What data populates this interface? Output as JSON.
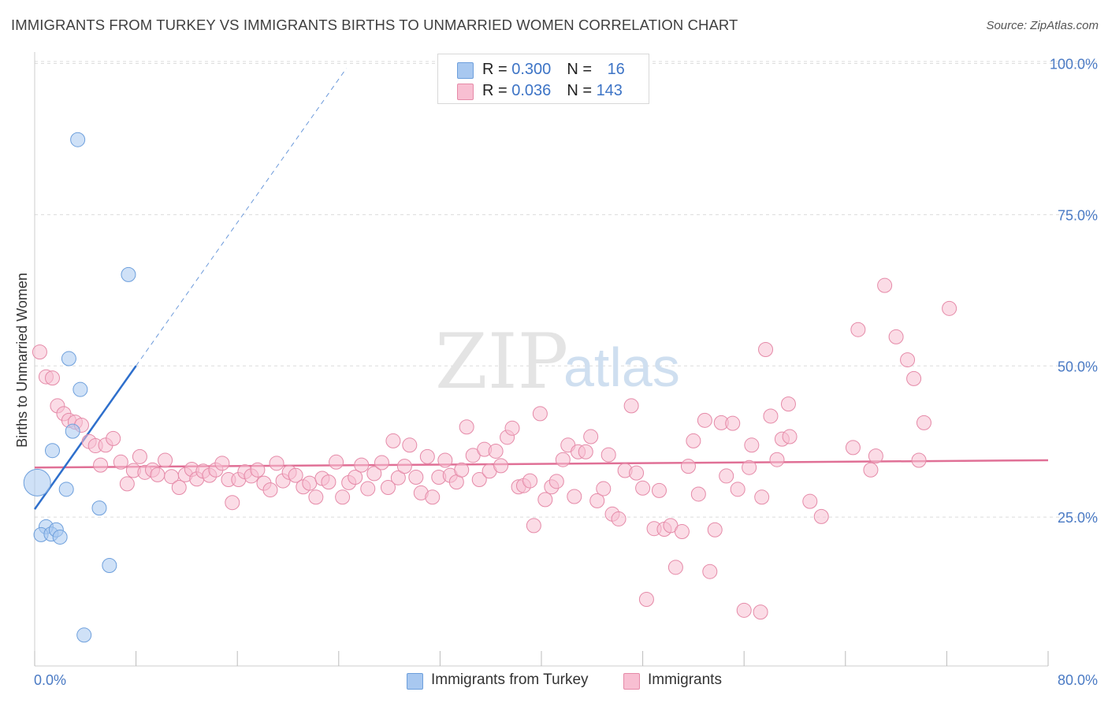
{
  "title": "IMMIGRANTS FROM TURKEY VS IMMIGRANTS BIRTHS TO UNMARRIED WOMEN CORRELATION CHART",
  "source": "Source: ZipAtlas.com",
  "watermark": {
    "part1": "ZIP",
    "part2": "atlas"
  },
  "legend": {
    "rows": [
      {
        "r_label": "R = ",
        "r_value": "0.300",
        "n_label": "N = ",
        "n_value": "16",
        "color": "#a8c8f0",
        "border": "#6d9fdc"
      },
      {
        "r_label": "R = ",
        "r_value": "0.036",
        "n_label": "N = ",
        "n_value": "143",
        "color": "#f8bfd2",
        "border": "#e58aa8"
      }
    ]
  },
  "bottom_legend": {
    "series1": "Immigrants from Turkey",
    "series2": "Immigrants"
  },
  "chart_data": {
    "type": "scatter",
    "title": "IMMIGRANTS FROM TURKEY VS IMMIGRANTS BIRTHS TO UNMARRIED WOMEN CORRELATION CHART",
    "xlabel": "",
    "ylabel": "Births to Unmarried Women",
    "xlim": [
      0,
      80
    ],
    "ylim": [
      0,
      100
    ],
    "x_tick_labels": [
      "0.0%",
      "80.0%"
    ],
    "y_tick_labels": [
      "25.0%",
      "50.0%",
      "75.0%",
      "100.0%"
    ],
    "y_ticks": [
      25,
      50,
      75,
      100
    ],
    "grid": true,
    "legend_position": "top-center",
    "series": [
      {
        "name": "Immigrants from Turkey",
        "color": "#a8c8f0",
        "stroke": "#6d9fdc",
        "line_color": "#2e6fcc",
        "trend": {
          "x0": 0,
          "y0": 26.3,
          "x1": 8,
          "y1": 50,
          "x_dash_end": 24.6
        },
        "points": [
          {
            "x": 3.4,
            "y": 87.4
          },
          {
            "x": 7.4,
            "y": 65.1
          },
          {
            "x": 2.7,
            "y": 51.2
          },
          {
            "x": 3.6,
            "y": 46.1
          },
          {
            "x": 3.0,
            "y": 39.2
          },
          {
            "x": 1.4,
            "y": 36.0
          },
          {
            "x": 0.2,
            "y": 30.7,
            "big": true
          },
          {
            "x": 2.5,
            "y": 29.6
          },
          {
            "x": 5.1,
            "y": 26.5
          },
          {
            "x": 0.9,
            "y": 23.4
          },
          {
            "x": 0.5,
            "y": 22.1
          },
          {
            "x": 1.3,
            "y": 22.2
          },
          {
            "x": 1.7,
            "y": 22.9
          },
          {
            "x": 2.0,
            "y": 21.7
          },
          {
            "x": 5.9,
            "y": 17.0
          },
          {
            "x": 3.9,
            "y": 5.5
          }
        ]
      },
      {
        "name": "Immigrants",
        "color": "#f8bfd2",
        "stroke": "#e58aa8",
        "line_color": "#e07096",
        "trend": {
          "x0": 0,
          "y0": 33.2,
          "x1": 80,
          "y1": 34.4
        },
        "points": [
          {
            "x": 0.4,
            "y": 52.3
          },
          {
            "x": 0.9,
            "y": 48.2
          },
          {
            "x": 1.4,
            "y": 48.0
          },
          {
            "x": 1.8,
            "y": 43.4
          },
          {
            "x": 2.3,
            "y": 42.1
          },
          {
            "x": 2.7,
            "y": 41.0
          },
          {
            "x": 3.2,
            "y": 40.7
          },
          {
            "x": 3.7,
            "y": 40.2
          },
          {
            "x": 4.3,
            "y": 37.5
          },
          {
            "x": 4.8,
            "y": 36.8
          },
          {
            "x": 5.2,
            "y": 33.6
          },
          {
            "x": 5.6,
            "y": 36.9
          },
          {
            "x": 6.2,
            "y": 38.0
          },
          {
            "x": 6.8,
            "y": 34.1
          },
          {
            "x": 7.3,
            "y": 30.5
          },
          {
            "x": 7.8,
            "y": 32.7
          },
          {
            "x": 8.3,
            "y": 35.0
          },
          {
            "x": 8.7,
            "y": 32.4
          },
          {
            "x": 9.3,
            "y": 32.8
          },
          {
            "x": 9.7,
            "y": 32.0
          },
          {
            "x": 10.3,
            "y": 34.4
          },
          {
            "x": 10.8,
            "y": 31.7
          },
          {
            "x": 11.4,
            "y": 29.9
          },
          {
            "x": 11.9,
            "y": 32.0
          },
          {
            "x": 12.4,
            "y": 32.9
          },
          {
            "x": 12.8,
            "y": 31.3
          },
          {
            "x": 13.3,
            "y": 32.6
          },
          {
            "x": 13.8,
            "y": 31.9
          },
          {
            "x": 14.3,
            "y": 32.8
          },
          {
            "x": 14.8,
            "y": 33.9
          },
          {
            "x": 15.3,
            "y": 31.2
          },
          {
            "x": 15.6,
            "y": 27.4
          },
          {
            "x": 16.1,
            "y": 31.2
          },
          {
            "x": 16.6,
            "y": 32.5
          },
          {
            "x": 17.1,
            "y": 31.8
          },
          {
            "x": 17.6,
            "y": 32.8
          },
          {
            "x": 18.1,
            "y": 30.6
          },
          {
            "x": 18.6,
            "y": 29.5
          },
          {
            "x": 19.1,
            "y": 33.9
          },
          {
            "x": 19.6,
            "y": 31.0
          },
          {
            "x": 20.1,
            "y": 32.4
          },
          {
            "x": 20.6,
            "y": 31.9
          },
          {
            "x": 21.2,
            "y": 30.0
          },
          {
            "x": 21.7,
            "y": 30.6
          },
          {
            "x": 22.2,
            "y": 28.3
          },
          {
            "x": 22.7,
            "y": 31.4
          },
          {
            "x": 23.2,
            "y": 30.8
          },
          {
            "x": 23.8,
            "y": 34.1
          },
          {
            "x": 24.3,
            "y": 28.3
          },
          {
            "x": 24.8,
            "y": 30.7
          },
          {
            "x": 25.3,
            "y": 31.6
          },
          {
            "x": 25.8,
            "y": 33.6
          },
          {
            "x": 26.3,
            "y": 29.7
          },
          {
            "x": 26.8,
            "y": 32.2
          },
          {
            "x": 27.4,
            "y": 34.0
          },
          {
            "x": 27.9,
            "y": 29.9
          },
          {
            "x": 28.3,
            "y": 37.6
          },
          {
            "x": 28.7,
            "y": 31.5
          },
          {
            "x": 29.2,
            "y": 33.4
          },
          {
            "x": 29.6,
            "y": 36.9
          },
          {
            "x": 30.1,
            "y": 31.6
          },
          {
            "x": 30.5,
            "y": 29.0
          },
          {
            "x": 31.0,
            "y": 35.0
          },
          {
            "x": 31.4,
            "y": 28.3
          },
          {
            "x": 31.9,
            "y": 31.6
          },
          {
            "x": 32.4,
            "y": 34.4
          },
          {
            "x": 32.8,
            "y": 31.9
          },
          {
            "x": 33.3,
            "y": 30.8
          },
          {
            "x": 33.7,
            "y": 32.8
          },
          {
            "x": 34.1,
            "y": 39.9
          },
          {
            "x": 34.6,
            "y": 35.2
          },
          {
            "x": 35.1,
            "y": 31.2
          },
          {
            "x": 35.5,
            "y": 36.2
          },
          {
            "x": 35.9,
            "y": 32.6
          },
          {
            "x": 36.4,
            "y": 35.9
          },
          {
            "x": 36.8,
            "y": 33.5
          },
          {
            "x": 37.3,
            "y": 38.2
          },
          {
            "x": 37.7,
            "y": 39.7
          },
          {
            "x": 38.2,
            "y": 30.0
          },
          {
            "x": 38.6,
            "y": 30.2
          },
          {
            "x": 39.1,
            "y": 31.0
          },
          {
            "x": 39.4,
            "y": 23.6
          },
          {
            "x": 39.9,
            "y": 42.1
          },
          {
            "x": 40.3,
            "y": 27.9
          },
          {
            "x": 40.8,
            "y": 30.0
          },
          {
            "x": 41.2,
            "y": 30.9
          },
          {
            "x": 41.7,
            "y": 34.5
          },
          {
            "x": 42.1,
            "y": 36.9
          },
          {
            "x": 42.6,
            "y": 28.4
          },
          {
            "x": 42.9,
            "y": 35.8
          },
          {
            "x": 43.5,
            "y": 35.8
          },
          {
            "x": 43.9,
            "y": 38.3
          },
          {
            "x": 44.4,
            "y": 27.7
          },
          {
            "x": 44.9,
            "y": 29.7
          },
          {
            "x": 45.3,
            "y": 35.3
          },
          {
            "x": 45.6,
            "y": 25.5
          },
          {
            "x": 46.1,
            "y": 24.7
          },
          {
            "x": 46.6,
            "y": 32.7
          },
          {
            "x": 47.1,
            "y": 43.4
          },
          {
            "x": 47.5,
            "y": 32.3
          },
          {
            "x": 48.0,
            "y": 29.8
          },
          {
            "x": 48.3,
            "y": 11.4
          },
          {
            "x": 48.9,
            "y": 23.1
          },
          {
            "x": 49.3,
            "y": 29.4
          },
          {
            "x": 49.7,
            "y": 23.0
          },
          {
            "x": 50.2,
            "y": 23.6
          },
          {
            "x": 50.6,
            "y": 16.7
          },
          {
            "x": 51.1,
            "y": 22.6
          },
          {
            "x": 51.6,
            "y": 33.4
          },
          {
            "x": 52.0,
            "y": 37.6
          },
          {
            "x": 52.4,
            "y": 28.8
          },
          {
            "x": 52.9,
            "y": 41.0
          },
          {
            "x": 53.3,
            "y": 16.0
          },
          {
            "x": 53.7,
            "y": 22.9
          },
          {
            "x": 54.2,
            "y": 40.6
          },
          {
            "x": 54.6,
            "y": 31.8
          },
          {
            "x": 55.1,
            "y": 40.5
          },
          {
            "x": 55.5,
            "y": 29.6
          },
          {
            "x": 56.0,
            "y": 9.6
          },
          {
            "x": 56.4,
            "y": 33.2
          },
          {
            "x": 56.6,
            "y": 36.9
          },
          {
            "x": 57.3,
            "y": 9.3
          },
          {
            "x": 57.4,
            "y": 28.3
          },
          {
            "x": 57.7,
            "y": 52.7
          },
          {
            "x": 58.1,
            "y": 41.7
          },
          {
            "x": 58.6,
            "y": 34.5
          },
          {
            "x": 59.0,
            "y": 37.9
          },
          {
            "x": 59.5,
            "y": 43.7
          },
          {
            "x": 59.6,
            "y": 38.3
          },
          {
            "x": 61.2,
            "y": 27.6
          },
          {
            "x": 62.1,
            "y": 25.1
          },
          {
            "x": 64.6,
            "y": 36.5
          },
          {
            "x": 65.0,
            "y": 56.0
          },
          {
            "x": 66.0,
            "y": 32.8
          },
          {
            "x": 66.4,
            "y": 35.1
          },
          {
            "x": 67.1,
            "y": 63.3
          },
          {
            "x": 68.0,
            "y": 54.8
          },
          {
            "x": 68.9,
            "y": 51.0
          },
          {
            "x": 69.4,
            "y": 47.9
          },
          {
            "x": 69.8,
            "y": 34.4
          },
          {
            "x": 70.2,
            "y": 40.6
          },
          {
            "x": 72.2,
            "y": 59.5
          }
        ]
      }
    ]
  }
}
